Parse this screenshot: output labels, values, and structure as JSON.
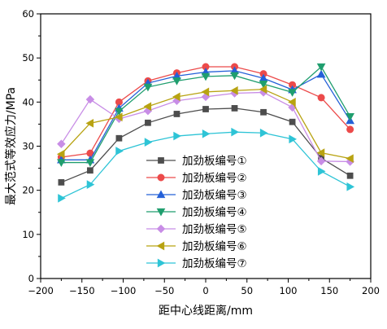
{
  "chart_data": {
    "type": "line",
    "xlabel": "距中心线距离/mm",
    "ylabel": "最大范式等效应力/MPa",
    "xlim": [
      -200,
      200
    ],
    "ylim": [
      0,
      60
    ],
    "xticks": [
      -200,
      -150,
      -100,
      -50,
      0,
      50,
      100,
      150,
      200
    ],
    "yticks": [
      0,
      10,
      20,
      30,
      40,
      50,
      60
    ],
    "x": [
      -175,
      -140,
      -105,
      -70,
      -35,
      0,
      35,
      70,
      105,
      140,
      175
    ],
    "legend_position": "lower-center",
    "grid": false,
    "series": [
      {
        "name": "加劲板编号①",
        "color": "#4d4d4d",
        "marker": "square",
        "values": [
          21.8,
          24.5,
          31.8,
          35.3,
          37.3,
          38.4,
          38.6,
          37.7,
          35.5,
          27.3,
          23.3
        ]
      },
      {
        "name": "加劲板编号②",
        "color": "#ec4a4a",
        "marker": "circle",
        "values": [
          27.5,
          28.4,
          40.0,
          44.8,
          46.6,
          48.0,
          48.0,
          46.4,
          43.9,
          41.0,
          33.8
        ]
      },
      {
        "name": "加劲板编号③",
        "color": "#2460d8",
        "marker": "triangle-up",
        "values": [
          26.9,
          26.9,
          38.6,
          44.3,
          45.9,
          46.8,
          47.1,
          45.4,
          42.8,
          46.3,
          35.8
        ]
      },
      {
        "name": "加劲板编号④",
        "color": "#1f9e6e",
        "marker": "triangle-down",
        "values": [
          26.3,
          26.3,
          37.9,
          43.4,
          44.8,
          45.8,
          46.0,
          44.1,
          42.2,
          48.0,
          36.7
        ]
      },
      {
        "name": "加劲板编号⑤",
        "color": "#c88de6",
        "marker": "diamond",
        "values": [
          30.5,
          40.6,
          36.2,
          38.0,
          40.3,
          41.2,
          42.0,
          42.2,
          38.8,
          26.6,
          26.5
        ]
      },
      {
        "name": "加劲板编号⑥",
        "color": "#b8a312",
        "marker": "triangle-left",
        "values": [
          28.2,
          35.2,
          36.6,
          39.0,
          41.2,
          42.3,
          42.6,
          42.9,
          40.0,
          28.5,
          27.2
        ]
      },
      {
        "name": "加劲板编号⑦",
        "color": "#2ec4d6",
        "marker": "triangle-right",
        "values": [
          18.2,
          21.3,
          28.9,
          30.9,
          32.3,
          32.8,
          33.2,
          33.0,
          31.6,
          24.3,
          20.8
        ]
      }
    ]
  }
}
